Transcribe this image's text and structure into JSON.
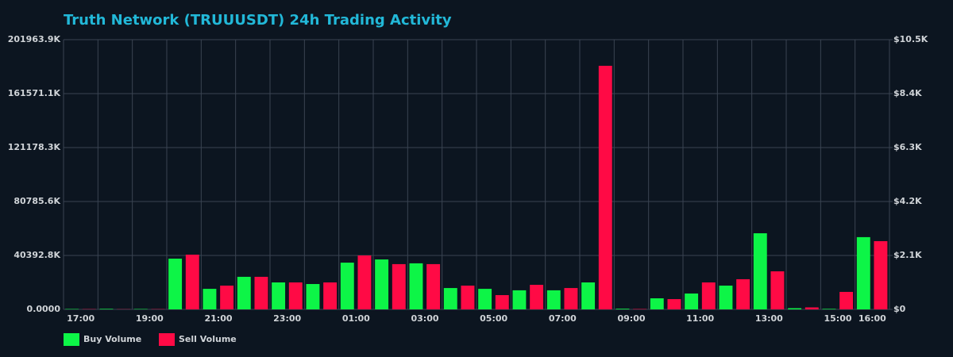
{
  "chart_data": {
    "type": "bar",
    "title": "Truth Network (TRUUUSDT) 24h Trading Activity",
    "categories": [
      "17:00",
      null,
      "19:00",
      null,
      "21:00",
      null,
      "23:00",
      null,
      "01:00",
      null,
      "03:00",
      null,
      "05:00",
      null,
      "07:00",
      null,
      "09:00",
      null,
      "11:00",
      null,
      "13:00",
      null,
      "15:00",
      "16:00"
    ],
    "series": [
      {
        "name": "Buy Volume",
        "color": "#0df547",
        "values": [
          300000,
          400000,
          300000,
          38000000,
          15400000,
          24400000,
          20200000,
          19000000,
          35000000,
          37400000,
          34500000,
          16000000,
          15400000,
          14300000,
          14300000,
          20200000,
          500000,
          8300000,
          11900000,
          17800000,
          57000000,
          900000,
          400000,
          54100000
        ]
      },
      {
        "name": "Sell Volume",
        "color": "#ff0a45",
        "values": [
          200000,
          150000,
          200000,
          41000000,
          17800000,
          24400000,
          20200000,
          20200000,
          40400000,
          33900000,
          33900000,
          17800000,
          10700000,
          18400000,
          16000000,
          182400000,
          300000,
          7700000,
          20200000,
          22600000,
          28500000,
          1500000,
          13100000,
          51100000
        ]
      }
    ],
    "ylim": [
      0,
      201963900
    ],
    "yticks": [
      {
        "value": 0,
        "label": "0.0000"
      },
      {
        "value": 40392800,
        "label": "40392.8K"
      },
      {
        "value": 80785600,
        "label": "80785.6K"
      },
      {
        "value": 121178300,
        "label": "121178.3K"
      },
      {
        "value": 161571100,
        "label": "161571.1K"
      },
      {
        "value": 201963900,
        "label": "201963.9K"
      }
    ],
    "y2lim": [
      0,
      10500
    ],
    "y2ticks": [
      {
        "value": 0,
        "label": "$0"
      },
      {
        "value": 2100,
        "label": "$2.1K"
      },
      {
        "value": 4200,
        "label": "$4.2K"
      },
      {
        "value": 6300,
        "label": "$6.3K"
      },
      {
        "value": 8400,
        "label": "$8.4K"
      },
      {
        "value": 10500,
        "label": "$10.5K"
      }
    ],
    "grid": true
  }
}
